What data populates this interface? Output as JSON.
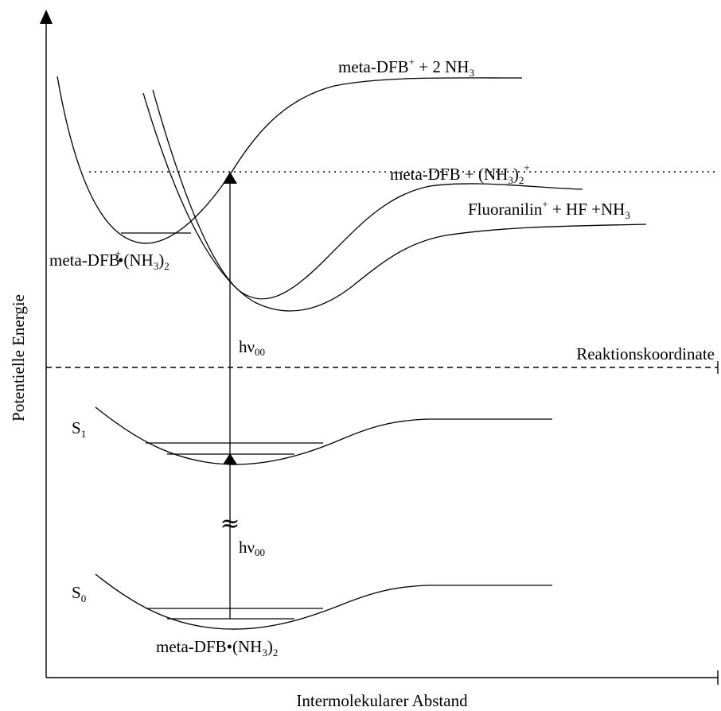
{
  "axes": {
    "y_label": "Potentielle Energie",
    "x_label": "Intermolekularer Abstand"
  },
  "labels": {
    "cation_asymptote": {
      "main": "meta-DFB",
      "sup": "+",
      "rest": " + 2 NH",
      "sub": "3"
    },
    "dotted_level": {
      "main": "meta-DFB + (NH",
      "sub": "3",
      "close": ")",
      "sub2": "2",
      "sup": "+"
    },
    "fluoroaniline": {
      "main": "Fluoranilin",
      "sup": "+",
      "rest": " + HF +NH",
      "sub": "3"
    },
    "cation_complex": {
      "main": "meta-DFB",
      "sup": "+",
      "dot": "•(NH",
      "sub": "3",
      "close": ")",
      "sub2": "2"
    },
    "reaction_coordinate": "Reaktionskoordinate",
    "photon_upper": {
      "main": "hν",
      "sub": "00"
    },
    "photon_lower": {
      "main": "hν",
      "sub": "00"
    },
    "s1": {
      "main": "S",
      "sub": "1"
    },
    "s0": {
      "main": "S",
      "sub": "0"
    },
    "neutral_complex": {
      "main": "meta-DFB•(NH",
      "sub": "3",
      "close": ")",
      "sub2": "2"
    },
    "break_symbol": "≈"
  }
}
